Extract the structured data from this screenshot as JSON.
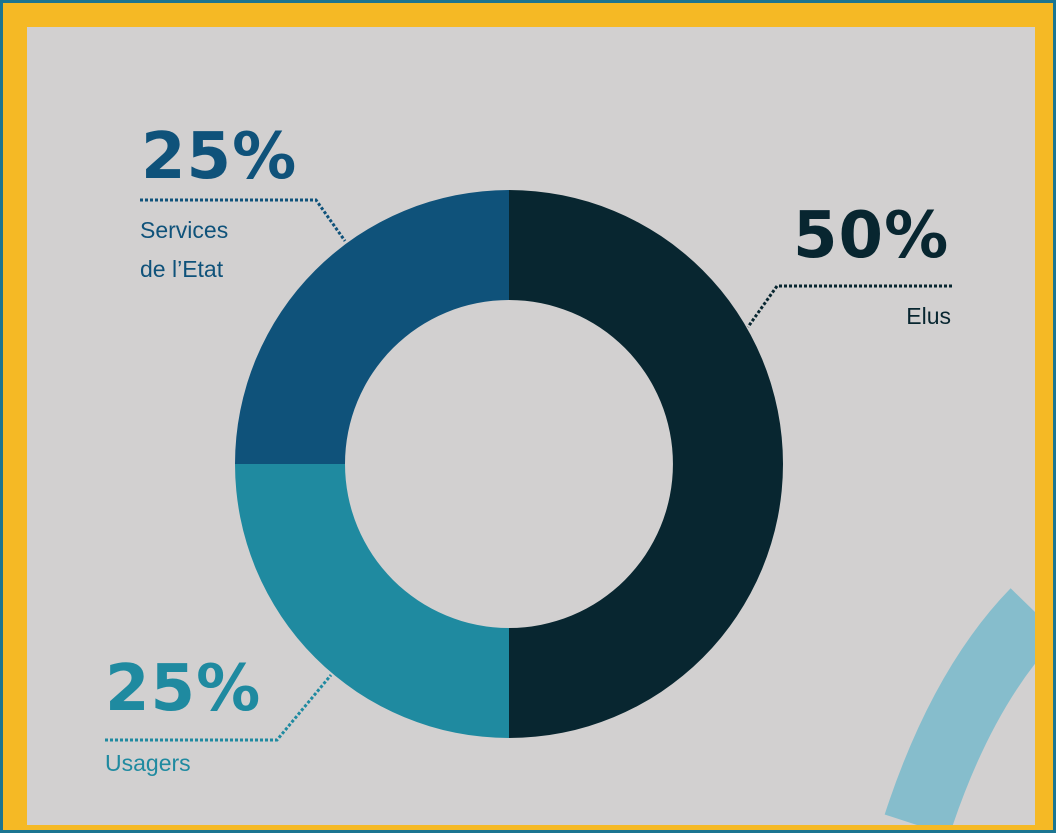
{
  "colors": {
    "frame": "#1b7591",
    "border": "#f5b925",
    "panel": "#d2d0d0",
    "elus": "#082630",
    "services": "#0f527a",
    "usagers": "#1f8aa0",
    "arc": "#86bdcc"
  },
  "chart_data": {
    "type": "pie",
    "variant": "donut",
    "slices": [
      {
        "label": "Elus",
        "value": 50,
        "display": "50%",
        "color": "#082630"
      },
      {
        "label": "Usagers",
        "value": 25,
        "display": "25%",
        "color": "#1f8aa0"
      },
      {
        "label": "Services de l’Etat",
        "value": 25,
        "display": "25%",
        "color": "#0f527a"
      }
    ]
  },
  "labels": {
    "elus": {
      "percent": "50%",
      "name": "Elus"
    },
    "services": {
      "percent": "25%",
      "line1": "Services",
      "line2": "de l’Etat"
    },
    "usagers": {
      "percent": "25%",
      "name": "Usagers"
    }
  }
}
